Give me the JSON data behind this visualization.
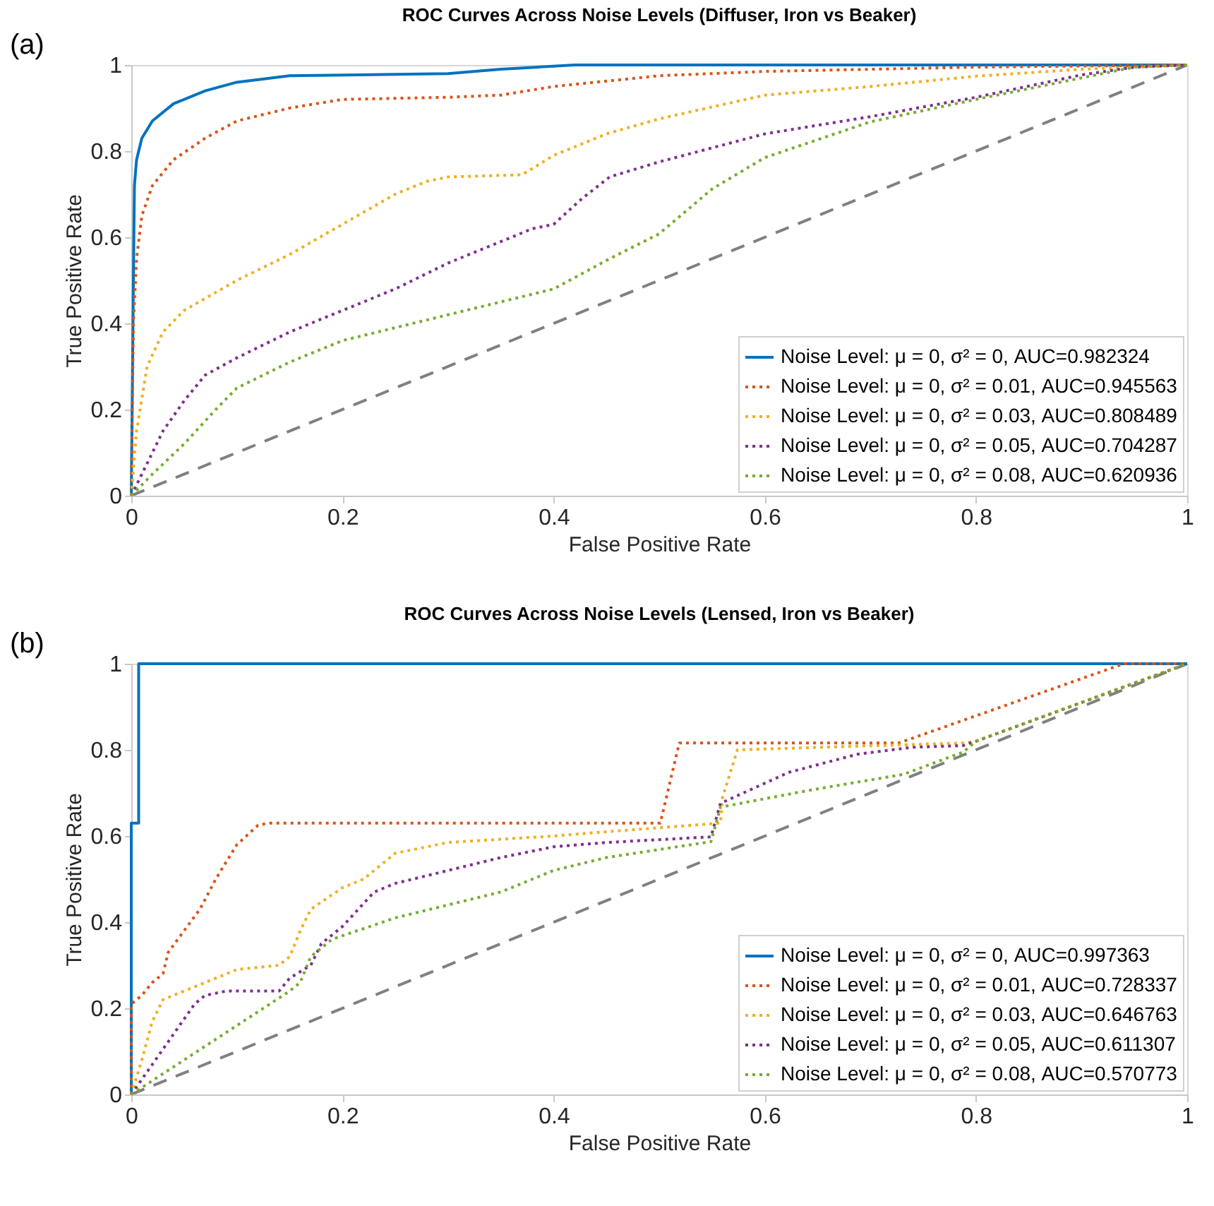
{
  "chart_data": [
    {
      "type": "line",
      "title": "ROC Curves Across Noise Levels (Diffuser, Iron vs Beaker)",
      "xlabel": "False Positive Rate",
      "ylabel": "True Positive Rate",
      "annotations": [
        "(a)"
      ],
      "xlim": [
        0,
        1
      ],
      "ylim": [
        0,
        1
      ],
      "xticks": [
        0,
        0.2,
        0.4,
        0.6,
        0.8,
        1
      ],
      "yticks": [
        0,
        0.2,
        0.4,
        0.6,
        0.8,
        1
      ],
      "legend": "bottom right",
      "series": [
        {
          "name": "Noise Level: μ = 0, σ² = 0, AUC=0.982324",
          "color": "#0072bd",
          "line_style": "solid",
          "x": [
            0,
            0.002,
            0.003,
            0.005,
            0.01,
            0.02,
            0.04,
            0.07,
            0.1,
            0.15,
            0.3,
            0.35,
            0.42,
            1
          ],
          "values": [
            0,
            0.5,
            0.72,
            0.78,
            0.83,
            0.87,
            0.91,
            0.94,
            0.96,
            0.975,
            0.98,
            0.99,
            1,
            1
          ]
        },
        {
          "name": "Noise Level: μ = 0, σ² = 0.01, AUC=0.945563",
          "color": "#d95319",
          "line_style": "dotted",
          "x": [
            0,
            0.002,
            0.005,
            0.01,
            0.02,
            0.04,
            0.07,
            0.1,
            0.15,
            0.2,
            0.3,
            0.35,
            0.4,
            0.5,
            0.6,
            0.8,
            1
          ],
          "values": [
            0,
            0.4,
            0.55,
            0.65,
            0.72,
            0.78,
            0.83,
            0.87,
            0.9,
            0.92,
            0.925,
            0.93,
            0.95,
            0.975,
            0.985,
            0.995,
            1
          ]
        },
        {
          "name": "Noise Level: μ = 0, σ² = 0.03, AUC=0.808489",
          "color": "#edb120",
          "line_style": "dotted",
          "x": [
            0,
            0.005,
            0.015,
            0.03,
            0.05,
            0.1,
            0.15,
            0.2,
            0.25,
            0.28,
            0.3,
            0.37,
            0.4,
            0.45,
            0.5,
            0.6,
            0.7,
            0.8,
            0.9,
            1
          ],
          "values": [
            0,
            0.15,
            0.3,
            0.38,
            0.43,
            0.5,
            0.56,
            0.63,
            0.7,
            0.73,
            0.74,
            0.745,
            0.79,
            0.84,
            0.875,
            0.93,
            0.95,
            0.974,
            0.99,
            1
          ]
        },
        {
          "name": "Noise Level: μ = 0, σ² = 0.05, AUC=0.704287",
          "color": "#7e2f8e",
          "line_style": "dotted",
          "x": [
            0,
            0.01,
            0.03,
            0.05,
            0.07,
            0.1,
            0.15,
            0.2,
            0.25,
            0.3,
            0.35,
            0.38,
            0.4,
            0.427,
            0.453,
            0.5,
            0.6,
            0.7,
            0.8,
            0.9,
            0.95,
            1
          ],
          "values": [
            0,
            0.05,
            0.15,
            0.22,
            0.28,
            0.32,
            0.38,
            0.43,
            0.48,
            0.54,
            0.59,
            0.62,
            0.63,
            0.69,
            0.74,
            0.775,
            0.84,
            0.88,
            0.925,
            0.977,
            0.995,
            1
          ]
        },
        {
          "name": "Noise Level: μ = 0, σ² = 0.08, AUC=0.620936",
          "color": "#77ac30",
          "line_style": "dotted",
          "x": [
            0,
            0.02,
            0.05,
            0.08,
            0.1,
            0.15,
            0.2,
            0.25,
            0.3,
            0.35,
            0.4,
            0.453,
            0.5,
            0.55,
            0.6,
            0.7,
            0.8,
            0.9,
            0.95,
            1
          ],
          "values": [
            0,
            0.05,
            0.12,
            0.2,
            0.25,
            0.31,
            0.36,
            0.39,
            0.42,
            0.45,
            0.48,
            0.55,
            0.608,
            0.712,
            0.785,
            0.868,
            0.92,
            0.97,
            0.995,
            1
          ]
        },
        {
          "color": "#808080",
          "line_style": "dashed",
          "x": [
            0,
            1
          ],
          "values": [
            0,
            1
          ]
        }
      ]
    },
    {
      "type": "line",
      "title": "ROC Curves Across Noise Levels (Lensed, Iron vs Beaker)",
      "xlabel": "False Positive Rate",
      "ylabel": "True Positive Rate",
      "annotations": [
        "(b)"
      ],
      "xlim": [
        0,
        1
      ],
      "ylim": [
        0,
        1
      ],
      "xticks": [
        0,
        0.2,
        0.4,
        0.6,
        0.8,
        1
      ],
      "yticks": [
        0,
        0.2,
        0.4,
        0.6,
        0.8,
        1
      ],
      "legend": "bottom right",
      "series": [
        {
          "name": "Noise Level: μ = 0, σ² = 0, AUC=0.997363",
          "color": "#0072bd",
          "line_style": "solid",
          "x": [
            0,
            0,
            0.007,
            0.007,
            1
          ],
          "values": [
            0,
            0.63,
            0.63,
            1,
            1
          ]
        },
        {
          "name": "Noise Level: μ = 0, σ² = 0.01, AUC=0.728337",
          "color": "#d95319",
          "line_style": "dotted",
          "x": [
            0,
            0,
            0.01,
            0.02,
            0.03,
            0.035,
            0.05,
            0.065,
            0.08,
            0.1,
            0.12,
            0.13,
            0.501,
            0.519,
            0.727,
            0.94,
            1
          ],
          "values": [
            0,
            0.21,
            0.23,
            0.26,
            0.28,
            0.33,
            0.38,
            0.43,
            0.5,
            0.58,
            0.625,
            0.63,
            0.63,
            0.816,
            0.816,
            1,
            1
          ]
        },
        {
          "name": "Noise Level: μ = 0, σ² = 0.03, AUC=0.646763",
          "color": "#edb120",
          "line_style": "dotted",
          "x": [
            0,
            0.01,
            0.02,
            0.03,
            0.05,
            0.08,
            0.1,
            0.14,
            0.15,
            0.16,
            0.17,
            0.2,
            0.22,
            0.25,
            0.3,
            0.4,
            0.45,
            0.558,
            0.56,
            0.574,
            0.788,
            0.8,
            1
          ],
          "values": [
            0,
            0.08,
            0.17,
            0.22,
            0.24,
            0.27,
            0.29,
            0.3,
            0.32,
            0.38,
            0.43,
            0.48,
            0.5,
            0.56,
            0.585,
            0.6,
            0.61,
            0.63,
            0.69,
            0.8,
            0.816,
            0.82,
            1
          ]
        },
        {
          "name": "Noise Level: μ = 0, σ² = 0.05, AUC=0.611307",
          "color": "#7e2f8e",
          "line_style": "dotted",
          "x": [
            0,
            0.02,
            0.04,
            0.06,
            0.07,
            0.09,
            0.14,
            0.15,
            0.17,
            0.18,
            0.2,
            0.23,
            0.25,
            0.3,
            0.35,
            0.4,
            0.45,
            0.549,
            0.558,
            0.623,
            0.688,
            0.74,
            0.788,
            0.8,
            1
          ],
          "values": [
            0,
            0.07,
            0.14,
            0.21,
            0.23,
            0.24,
            0.24,
            0.27,
            0.3,
            0.35,
            0.39,
            0.47,
            0.49,
            0.52,
            0.55,
            0.575,
            0.585,
            0.598,
            0.676,
            0.748,
            0.79,
            0.806,
            0.81,
            0.82,
            1
          ]
        },
        {
          "name": "Noise Level: μ = 0, σ² = 0.08, AUC=0.570773",
          "color": "#77ac30",
          "line_style": "dotted",
          "x": [
            0,
            0.05,
            0.1,
            0.15,
            0.16,
            0.17,
            0.19,
            0.25,
            0.3,
            0.35,
            0.4,
            0.45,
            0.549,
            0.558,
            0.644,
            0.731,
            0.788,
            0.8,
            1
          ],
          "values": [
            0,
            0.08,
            0.16,
            0.24,
            0.26,
            0.32,
            0.36,
            0.41,
            0.44,
            0.47,
            0.52,
            0.55,
            0.587,
            0.667,
            0.707,
            0.743,
            0.795,
            0.82,
            1
          ]
        },
        {
          "color": "#808080",
          "line_style": "dashed",
          "x": [
            0,
            1
          ],
          "values": [
            0,
            1
          ]
        }
      ]
    }
  ]
}
